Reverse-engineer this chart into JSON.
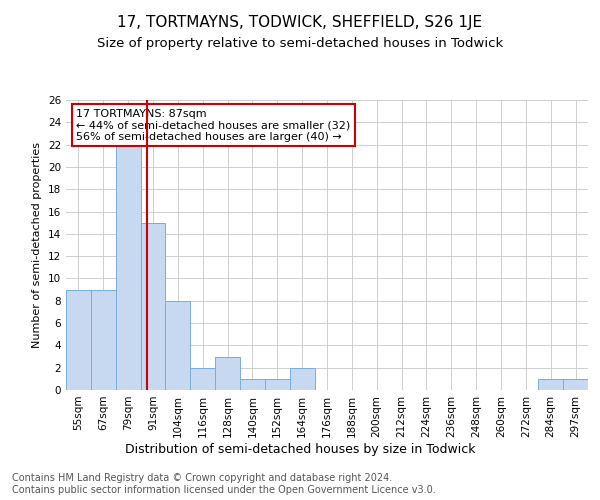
{
  "title": "17, TORTMAYNS, TODWICK, SHEFFIELD, S26 1JE",
  "subtitle": "Size of property relative to semi-detached houses in Todwick",
  "xlabel": "Distribution of semi-detached houses by size in Todwick",
  "ylabel": "Number of semi-detached properties",
  "bin_labels": [
    "55sqm",
    "67sqm",
    "79sqm",
    "91sqm",
    "104sqm",
    "116sqm",
    "128sqm",
    "140sqm",
    "152sqm",
    "164sqm",
    "176sqm",
    "188sqm",
    "200sqm",
    "212sqm",
    "224sqm",
    "236sqm",
    "248sqm",
    "260sqm",
    "272sqm",
    "284sqm",
    "297sqm"
  ],
  "bar_values": [
    9,
    9,
    22,
    15,
    8,
    2,
    3,
    1,
    1,
    2,
    0,
    0,
    0,
    0,
    0,
    0,
    0,
    0,
    0,
    1,
    1
  ],
  "bar_color": "#c6d9f0",
  "bar_edge_color": "#7aaddb",
  "grid_color": "#c8c8c8",
  "annotation_box_text": "17 TORTMAYNS: 87sqm\n← 44% of semi-detached houses are smaller (32)\n56% of semi-detached houses are larger (40) →",
  "annotation_box_color": "#ffffff",
  "annotation_box_edge": "#cc0000",
  "vline_x": 2.75,
  "vline_color": "#cc0000",
  "ylim": [
    0,
    26
  ],
  "yticks": [
    0,
    2,
    4,
    6,
    8,
    10,
    12,
    14,
    16,
    18,
    20,
    22,
    24,
    26
  ],
  "footnote": "Contains HM Land Registry data © Crown copyright and database right 2024.\nContains public sector information licensed under the Open Government Licence v3.0.",
  "title_fontsize": 11,
  "subtitle_fontsize": 9.5,
  "xlabel_fontsize": 9,
  "ylabel_fontsize": 8,
  "tick_fontsize": 7.5,
  "footnote_fontsize": 7,
  "annot_fontsize": 8
}
